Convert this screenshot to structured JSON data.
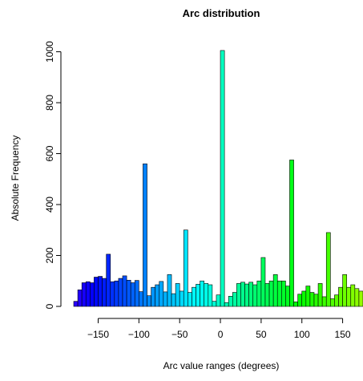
{
  "chart_data": {
    "type": "bar",
    "title": "Arc distribution",
    "xlabel": "Arc value ranges (degrees)",
    "ylabel": "Absolute Frequency",
    "bin_width": 5,
    "x_range": [
      -180,
      175
    ],
    "xlim": [
      -180,
      175
    ],
    "ylim": [
      0,
      1008
    ],
    "x_ticks": [
      -150,
      -100,
      -50,
      0,
      50,
      100,
      150
    ],
    "x_tick_labels": [
      "−150",
      "−100",
      "−50",
      "0",
      "50",
      "100",
      "150"
    ],
    "y_ticks": [
      0,
      200,
      400,
      600,
      800,
      1000
    ],
    "y_tick_labels": [
      "0",
      "200",
      "400",
      "600",
      "800",
      "1000"
    ],
    "grid": false,
    "legend": "none",
    "color_scale": "blue-purple to cyan to green (rainbow by bin)",
    "bins_start": [
      -180,
      -175,
      -170,
      -165,
      -160,
      -155,
      -150,
      -145,
      -140,
      -135,
      -130,
      -125,
      -120,
      -115,
      -110,
      -105,
      -100,
      -95,
      -90,
      -85,
      -80,
      -75,
      -70,
      -65,
      -60,
      -55,
      -50,
      -45,
      -40,
      -35,
      -30,
      -25,
      -20,
      -15,
      -10,
      -5,
      0,
      5,
      10,
      15,
      20,
      25,
      30,
      35,
      40,
      45,
      50,
      55,
      60,
      65,
      70,
      75,
      80,
      85,
      90,
      95,
      100,
      105,
      110,
      115,
      120,
      125,
      130,
      135,
      140,
      145,
      150,
      155,
      160,
      165,
      170
    ],
    "values": [
      20,
      65,
      93,
      97,
      93,
      115,
      118,
      110,
      205,
      97,
      100,
      110,
      120,
      103,
      93,
      102,
      58,
      560,
      42,
      75,
      85,
      98,
      57,
      125,
      50,
      90,
      60,
      300,
      55,
      75,
      87,
      100,
      90,
      85,
      20,
      45,
      1005,
      15,
      40,
      55,
      90,
      95,
      88,
      95,
      85,
      100,
      192,
      90,
      100,
      125,
      100,
      100,
      80,
      575,
      18,
      48,
      60,
      80,
      55,
      48,
      90,
      38,
      290,
      30,
      45,
      75,
      125,
      75,
      85,
      70,
      60
    ]
  }
}
